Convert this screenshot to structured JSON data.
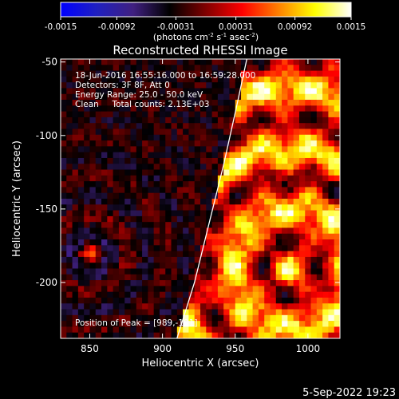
{
  "chart_data": {
    "type": "heatmap",
    "title": "Reconstructed RHESSI Image",
    "colorbar": {
      "tick_labels": [
        "-0.0015",
        "-0.00092",
        "-0.00031",
        "0.00031",
        "0.00092",
        "0.0015"
      ],
      "tick_values": [
        -0.0015,
        -0.00092,
        -0.00031,
        0.00031,
        0.00092,
        0.0015
      ],
      "range": [
        -0.0015,
        0.0015
      ],
      "units_text": "(photons cm",
      "units_parts": [
        "(photons cm",
        "-2",
        " s",
        "-1",
        " asec",
        "-2",
        ")"
      ],
      "colormap": [
        "#0000ff",
        "#2020c0",
        "#402080",
        "#000000",
        "#800000",
        "#ff0000",
        "#ff8000",
        "#ffff00",
        "#ffffff"
      ]
    },
    "annotations": [
      "18-Jun-2016 16:55:16.000 to 16:59:28.000",
      "Detectors: 3F 8F, Att 0",
      "Energy Range: 25.0 - 50.0 keV",
      "Clean     Total counts: 2.13E+03"
    ],
    "peak_label": "Position of Peak = [989,-191]",
    "peak": {
      "x": 989,
      "y": -191
    },
    "xlabel": "Heliocentric X (arcsec)",
    "ylabel": "Heliocentric Y (arcsec)",
    "xlim": [
      830,
      1022
    ],
    "ylim": [
      -238,
      -48
    ],
    "xticks": [
      850,
      900,
      950,
      1000
    ],
    "yticks": [
      -50,
      -100,
      -150,
      -200
    ],
    "limb_points": [
      [
        910,
        -238
      ],
      [
        922,
        -200
      ],
      [
        932,
        -160
      ],
      [
        942,
        -120
      ],
      [
        951,
        -80
      ],
      [
        958,
        -48
      ]
    ]
  },
  "footer_date": "5-Sep-2022 19:23"
}
